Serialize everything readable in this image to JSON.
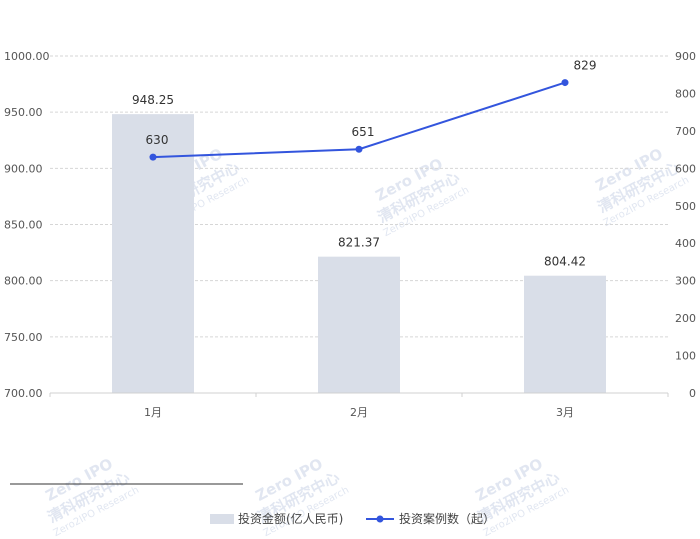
{
  "chart_data": {
    "type": "bar",
    "categories": [
      "1月",
      "2月",
      "3月"
    ],
    "series": [
      {
        "name": "投资金额(亿人民币)",
        "type": "bar",
        "axis": "left",
        "values": [
          948.25,
          821.37,
          804.42
        ],
        "labels": [
          "948.25",
          "821.37",
          "804.42"
        ],
        "color": "#d9dee8"
      },
      {
        "name": "投资案例数（起）",
        "type": "line",
        "axis": "right",
        "values": [
          630,
          651,
          829
        ],
        "labels": [
          "630",
          "651",
          "829"
        ],
        "color": "#3355dd"
      }
    ],
    "y_left": {
      "lim": [
        700,
        1000
      ],
      "ticks": [
        700,
        750,
        800,
        850,
        900,
        950,
        1000
      ],
      "tick_labels": [
        "700.00",
        "750.00",
        "800.00",
        "850.00",
        "900.00",
        "950.00",
        "1000.00"
      ]
    },
    "y_right": {
      "lim": [
        0,
        900
      ],
      "ticks": [
        0,
        100,
        200,
        300,
        400,
        500,
        600,
        700,
        800,
        900
      ],
      "tick_labels": [
        "0",
        "100",
        "200",
        "300",
        "400",
        "500",
        "600",
        "700",
        "800",
        "900"
      ]
    },
    "grid": true,
    "legend": "bottom",
    "watermark": {
      "title": "清科研究中心",
      "sub": "Zero2IPO Research",
      "badge": "Zero IPO"
    }
  }
}
